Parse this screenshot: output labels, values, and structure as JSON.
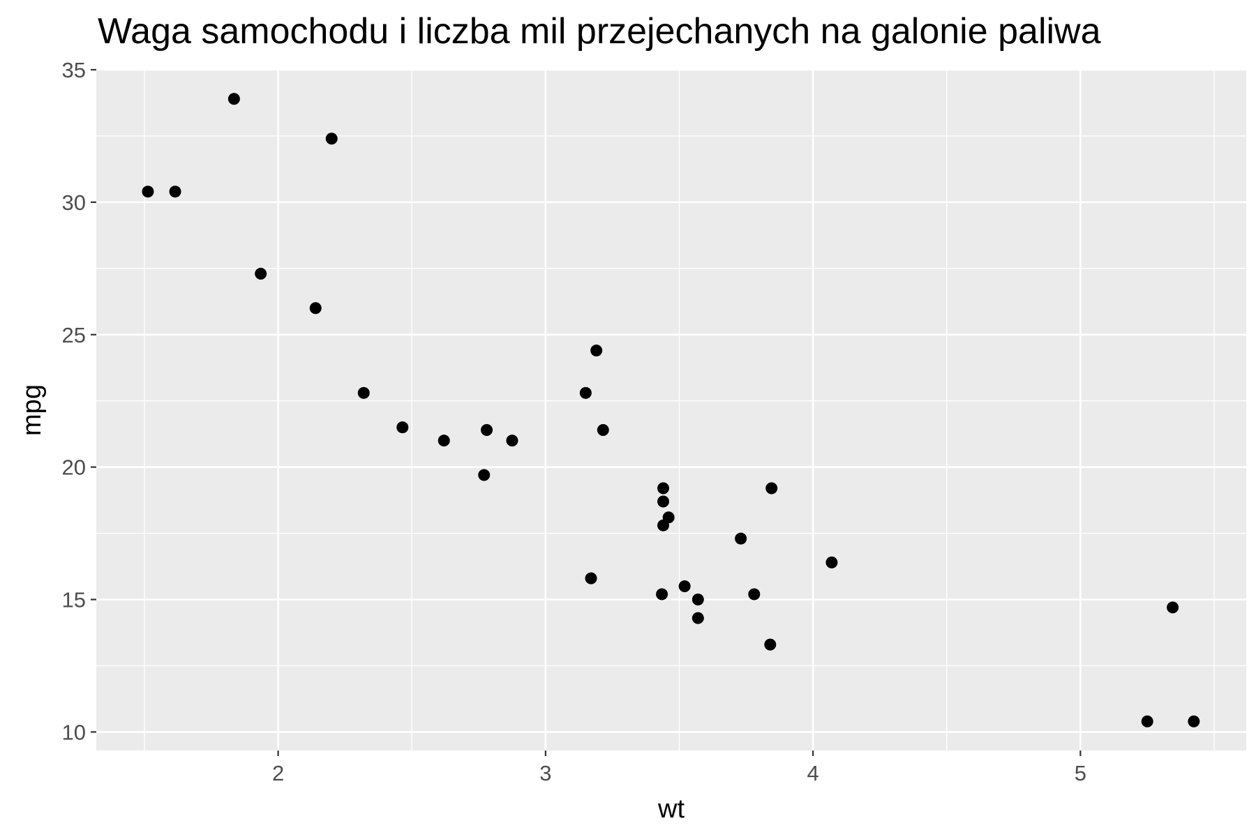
{
  "chart_data": {
    "type": "scatter",
    "title": "Waga samochodu i liczba mil przejechanych na galonie paliwa",
    "xlabel": "wt",
    "ylabel": "mpg",
    "xlim": [
      1.32,
      5.62
    ],
    "ylim": [
      9.3,
      35.0
    ],
    "x_ticks": [
      2,
      3,
      4,
      5
    ],
    "x_tick_labels": [
      "2",
      "3",
      "4",
      "5"
    ],
    "y_ticks": [
      10,
      15,
      20,
      25,
      30,
      35
    ],
    "y_tick_labels": [
      "10",
      "15",
      "20",
      "25",
      "30",
      "35"
    ],
    "grid": true,
    "legend": "none",
    "colors": {
      "panel": "#ebebeb",
      "grid": "#ffffff",
      "point": "#000000",
      "tick_text": "#4d4d4d",
      "tick_mark": "#333333"
    },
    "series": [
      {
        "x": [
          2.62,
          2.875,
          2.32,
          3.215,
          3.44,
          3.46,
          3.57,
          3.19,
          3.15,
          3.44,
          3.44,
          4.07,
          3.73,
          3.78,
          5.25,
          5.424,
          5.345,
          2.2,
          1.615,
          1.835,
          2.465,
          3.52,
          3.435,
          3.84,
          3.845,
          1.935,
          2.14,
          1.513,
          3.17,
          2.77,
          3.57,
          2.78
        ],
        "y": [
          21.0,
          21.0,
          22.8,
          21.4,
          18.7,
          18.1,
          14.3,
          24.4,
          22.8,
          19.2,
          17.8,
          16.4,
          17.3,
          15.2,
          10.4,
          10.4,
          14.7,
          32.4,
          30.4,
          33.9,
          21.5,
          15.5,
          15.2,
          13.3,
          19.2,
          27.3,
          26.0,
          30.4,
          15.8,
          19.7,
          15.0,
          21.4
        ]
      }
    ]
  }
}
